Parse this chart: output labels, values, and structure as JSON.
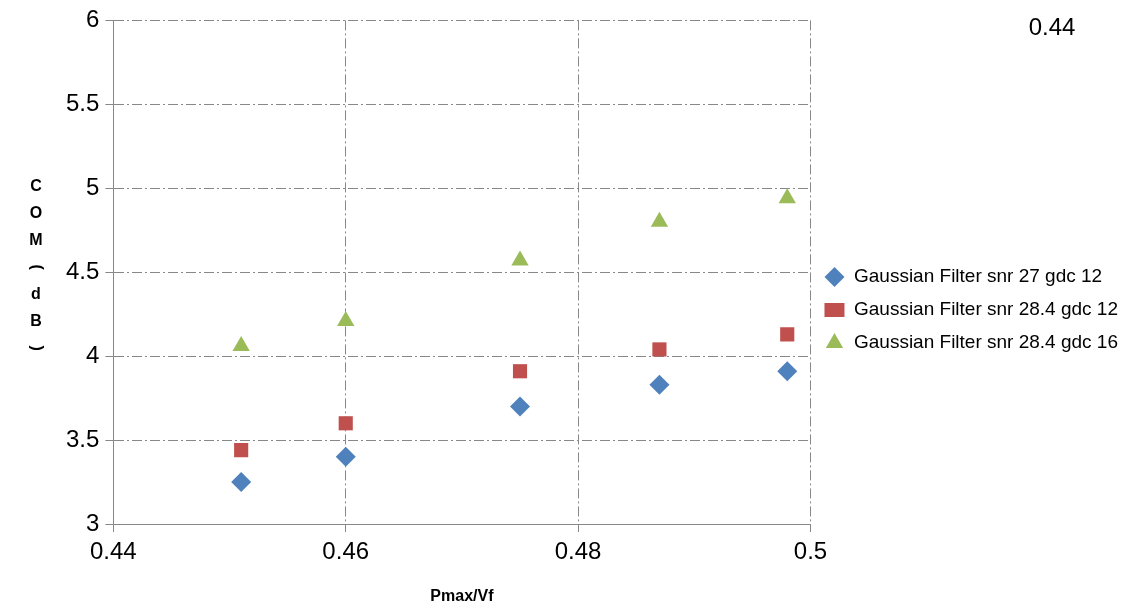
{
  "chart_data": {
    "type": "scatter",
    "xlabel": "Pmax/Vf",
    "ylabel": "COM (dB)",
    "annotations": [
      "0.44"
    ],
    "xlim": [
      0.44,
      0.5
    ],
    "xticks": [
      0.44,
      0.46,
      0.48,
      {
        "value": 0.5,
        "label": "0.5"
      }
    ],
    "ylim": [
      3,
      6
    ],
    "yticks": [
      3,
      3.5,
      4,
      4.5,
      5,
      5.5,
      6
    ],
    "grid": true,
    "legend": "right",
    "series": [
      {
        "name": "Gaussian Filter snr 27 gdc 12",
        "color": "#4f81bd",
        "marker": "diamond",
        "x": [
          0.451,
          0.46,
          0.475,
          0.487,
          0.498
        ],
        "values": [
          3.25,
          3.4,
          3.7,
          3.83,
          3.91
        ]
      },
      {
        "name": "Gaussian Filter snr 28.4 gdc 12",
        "color": "#c0504d",
        "marker": "square",
        "x": [
          0.451,
          0.46,
          0.475,
          0.487,
          0.498
        ],
        "values": [
          3.44,
          3.6,
          3.91,
          4.04,
          4.13
        ]
      },
      {
        "name": "Gaussian Filter snr 28.4 gdc 16",
        "color": "#9bbb59",
        "marker": "triangle",
        "x": [
          0.451,
          0.46,
          0.475,
          0.487,
          0.498
        ],
        "values": [
          4.06,
          4.21,
          4.57,
          4.8,
          4.94
        ]
      }
    ]
  }
}
